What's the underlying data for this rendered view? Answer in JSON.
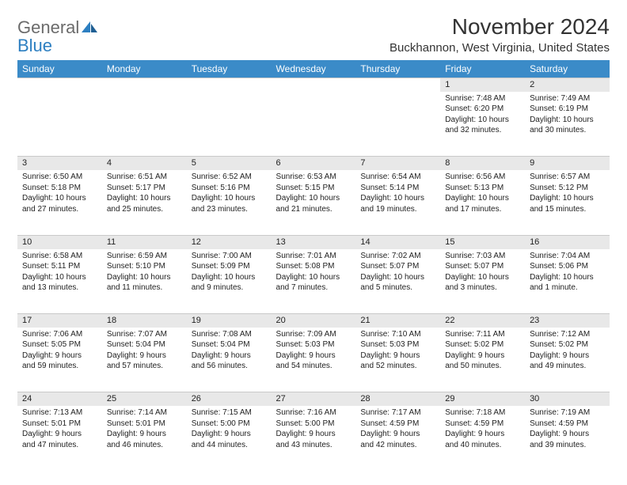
{
  "logo": {
    "text_gray": "General",
    "text_blue": "Blue"
  },
  "title": "November 2024",
  "location": "Buckhannon, West Virginia, United States",
  "colors": {
    "header_bg": "#3b8bc8",
    "daynum_bg": "#e8e8e8",
    "text": "#222222",
    "logo_gray": "#6b6b6b",
    "logo_blue": "#2d7fc1"
  },
  "weekdays": [
    "Sunday",
    "Monday",
    "Tuesday",
    "Wednesday",
    "Thursday",
    "Friday",
    "Saturday"
  ],
  "weeks": [
    [
      null,
      null,
      null,
      null,
      null,
      {
        "n": "1",
        "sr": "Sunrise: 7:48 AM",
        "ss": "Sunset: 6:20 PM",
        "d1": "Daylight: 10 hours",
        "d2": "and 32 minutes."
      },
      {
        "n": "2",
        "sr": "Sunrise: 7:49 AM",
        "ss": "Sunset: 6:19 PM",
        "d1": "Daylight: 10 hours",
        "d2": "and 30 minutes."
      }
    ],
    [
      {
        "n": "3",
        "sr": "Sunrise: 6:50 AM",
        "ss": "Sunset: 5:18 PM",
        "d1": "Daylight: 10 hours",
        "d2": "and 27 minutes."
      },
      {
        "n": "4",
        "sr": "Sunrise: 6:51 AM",
        "ss": "Sunset: 5:17 PM",
        "d1": "Daylight: 10 hours",
        "d2": "and 25 minutes."
      },
      {
        "n": "5",
        "sr": "Sunrise: 6:52 AM",
        "ss": "Sunset: 5:16 PM",
        "d1": "Daylight: 10 hours",
        "d2": "and 23 minutes."
      },
      {
        "n": "6",
        "sr": "Sunrise: 6:53 AM",
        "ss": "Sunset: 5:15 PM",
        "d1": "Daylight: 10 hours",
        "d2": "and 21 minutes."
      },
      {
        "n": "7",
        "sr": "Sunrise: 6:54 AM",
        "ss": "Sunset: 5:14 PM",
        "d1": "Daylight: 10 hours",
        "d2": "and 19 minutes."
      },
      {
        "n": "8",
        "sr": "Sunrise: 6:56 AM",
        "ss": "Sunset: 5:13 PM",
        "d1": "Daylight: 10 hours",
        "d2": "and 17 minutes."
      },
      {
        "n": "9",
        "sr": "Sunrise: 6:57 AM",
        "ss": "Sunset: 5:12 PM",
        "d1": "Daylight: 10 hours",
        "d2": "and 15 minutes."
      }
    ],
    [
      {
        "n": "10",
        "sr": "Sunrise: 6:58 AM",
        "ss": "Sunset: 5:11 PM",
        "d1": "Daylight: 10 hours",
        "d2": "and 13 minutes."
      },
      {
        "n": "11",
        "sr": "Sunrise: 6:59 AM",
        "ss": "Sunset: 5:10 PM",
        "d1": "Daylight: 10 hours",
        "d2": "and 11 minutes."
      },
      {
        "n": "12",
        "sr": "Sunrise: 7:00 AM",
        "ss": "Sunset: 5:09 PM",
        "d1": "Daylight: 10 hours",
        "d2": "and 9 minutes."
      },
      {
        "n": "13",
        "sr": "Sunrise: 7:01 AM",
        "ss": "Sunset: 5:08 PM",
        "d1": "Daylight: 10 hours",
        "d2": "and 7 minutes."
      },
      {
        "n": "14",
        "sr": "Sunrise: 7:02 AM",
        "ss": "Sunset: 5:07 PM",
        "d1": "Daylight: 10 hours",
        "d2": "and 5 minutes."
      },
      {
        "n": "15",
        "sr": "Sunrise: 7:03 AM",
        "ss": "Sunset: 5:07 PM",
        "d1": "Daylight: 10 hours",
        "d2": "and 3 minutes."
      },
      {
        "n": "16",
        "sr": "Sunrise: 7:04 AM",
        "ss": "Sunset: 5:06 PM",
        "d1": "Daylight: 10 hours",
        "d2": "and 1 minute."
      }
    ],
    [
      {
        "n": "17",
        "sr": "Sunrise: 7:06 AM",
        "ss": "Sunset: 5:05 PM",
        "d1": "Daylight: 9 hours",
        "d2": "and 59 minutes."
      },
      {
        "n": "18",
        "sr": "Sunrise: 7:07 AM",
        "ss": "Sunset: 5:04 PM",
        "d1": "Daylight: 9 hours",
        "d2": "and 57 minutes."
      },
      {
        "n": "19",
        "sr": "Sunrise: 7:08 AM",
        "ss": "Sunset: 5:04 PM",
        "d1": "Daylight: 9 hours",
        "d2": "and 56 minutes."
      },
      {
        "n": "20",
        "sr": "Sunrise: 7:09 AM",
        "ss": "Sunset: 5:03 PM",
        "d1": "Daylight: 9 hours",
        "d2": "and 54 minutes."
      },
      {
        "n": "21",
        "sr": "Sunrise: 7:10 AM",
        "ss": "Sunset: 5:03 PM",
        "d1": "Daylight: 9 hours",
        "d2": "and 52 minutes."
      },
      {
        "n": "22",
        "sr": "Sunrise: 7:11 AM",
        "ss": "Sunset: 5:02 PM",
        "d1": "Daylight: 9 hours",
        "d2": "and 50 minutes."
      },
      {
        "n": "23",
        "sr": "Sunrise: 7:12 AM",
        "ss": "Sunset: 5:02 PM",
        "d1": "Daylight: 9 hours",
        "d2": "and 49 minutes."
      }
    ],
    [
      {
        "n": "24",
        "sr": "Sunrise: 7:13 AM",
        "ss": "Sunset: 5:01 PM",
        "d1": "Daylight: 9 hours",
        "d2": "and 47 minutes."
      },
      {
        "n": "25",
        "sr": "Sunrise: 7:14 AM",
        "ss": "Sunset: 5:01 PM",
        "d1": "Daylight: 9 hours",
        "d2": "and 46 minutes."
      },
      {
        "n": "26",
        "sr": "Sunrise: 7:15 AM",
        "ss": "Sunset: 5:00 PM",
        "d1": "Daylight: 9 hours",
        "d2": "and 44 minutes."
      },
      {
        "n": "27",
        "sr": "Sunrise: 7:16 AM",
        "ss": "Sunset: 5:00 PM",
        "d1": "Daylight: 9 hours",
        "d2": "and 43 minutes."
      },
      {
        "n": "28",
        "sr": "Sunrise: 7:17 AM",
        "ss": "Sunset: 4:59 PM",
        "d1": "Daylight: 9 hours",
        "d2": "and 42 minutes."
      },
      {
        "n": "29",
        "sr": "Sunrise: 7:18 AM",
        "ss": "Sunset: 4:59 PM",
        "d1": "Daylight: 9 hours",
        "d2": "and 40 minutes."
      },
      {
        "n": "30",
        "sr": "Sunrise: 7:19 AM",
        "ss": "Sunset: 4:59 PM",
        "d1": "Daylight: 9 hours",
        "d2": "and 39 minutes."
      }
    ]
  ]
}
